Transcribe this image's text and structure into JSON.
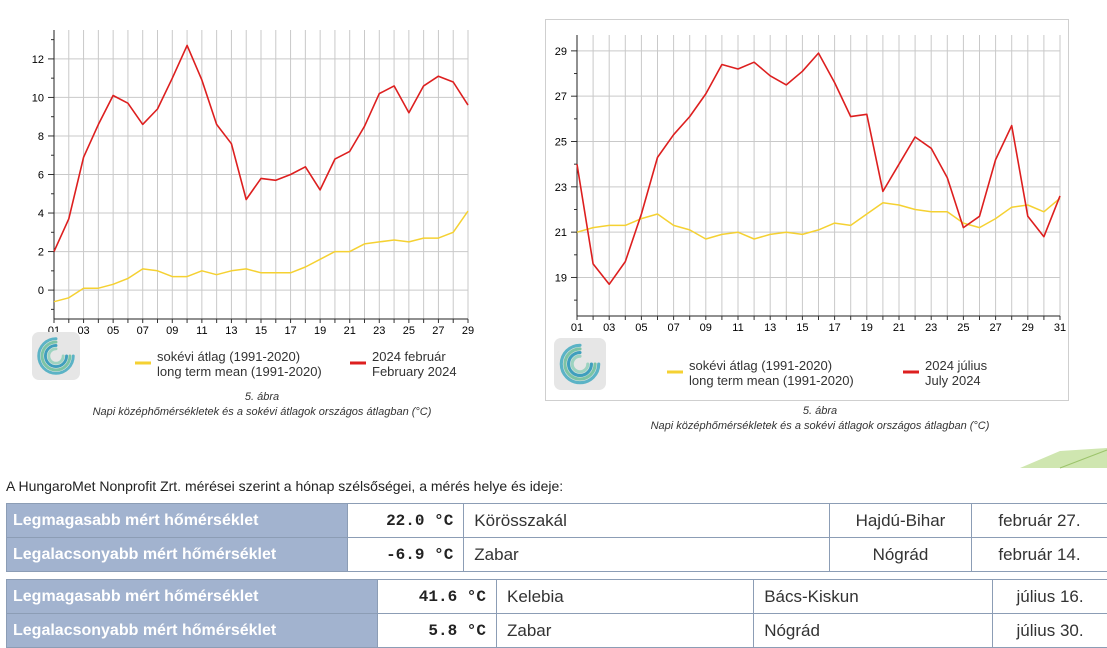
{
  "chart_data": [
    {
      "type": "line",
      "id": "feb",
      "x": [
        "01",
        "02",
        "03",
        "04",
        "05",
        "06",
        "07",
        "08",
        "09",
        "10",
        "11",
        "12",
        "13",
        "14",
        "15",
        "16",
        "17",
        "18",
        "19",
        "20",
        "21",
        "22",
        "23",
        "24",
        "25",
        "26",
        "27",
        "28",
        "29"
      ],
      "xtick_labels": [
        "01",
        "03",
        "05",
        "07",
        "09",
        "11",
        "13",
        "15",
        "17",
        "19",
        "21",
        "23",
        "25",
        "27",
        "29"
      ],
      "yticks": [
        0,
        2,
        4,
        6,
        8,
        10,
        12
      ],
      "ylim": [
        -1.5,
        13.5
      ],
      "series": [
        {
          "name": "sokévi átlag (1991-2020) / long term mean (1991-2020)",
          "color": "#f5d132",
          "values": [
            -0.6,
            -0.4,
            0.1,
            0.1,
            0.3,
            0.6,
            1.1,
            1.0,
            0.7,
            0.7,
            1.0,
            0.8,
            1.0,
            1.1,
            0.9,
            0.9,
            0.9,
            1.2,
            1.6,
            2.0,
            2.0,
            2.4,
            2.5,
            2.6,
            2.5,
            2.7,
            2.7,
            3.0,
            4.1
          ]
        },
        {
          "name": "2024 február / February 2024",
          "color": "#dd1f1f",
          "values": [
            2.0,
            3.7,
            6.9,
            8.6,
            10.1,
            9.7,
            8.6,
            9.4,
            11.0,
            12.7,
            10.9,
            8.6,
            7.6,
            4.7,
            5.8,
            5.7,
            6.0,
            6.4,
            5.2,
            6.8,
            7.2,
            8.5,
            10.2,
            10.6,
            9.2,
            10.6,
            11.1,
            10.8,
            9.6
          ]
        }
      ],
      "legend": {
        "mean_hu": "sokévi átlag (1991-2020)",
        "mean_en": "long term mean (1991-2020)",
        "cur_hu": "2024 február",
        "cur_en": "February 2024"
      }
    },
    {
      "type": "line",
      "id": "jul",
      "x": [
        "01",
        "02",
        "03",
        "04",
        "05",
        "06",
        "07",
        "08",
        "09",
        "10",
        "11",
        "12",
        "13",
        "14",
        "15",
        "16",
        "17",
        "18",
        "19",
        "20",
        "21",
        "22",
        "23",
        "24",
        "25",
        "26",
        "27",
        "28",
        "29",
        "30",
        "31"
      ],
      "xtick_labels": [
        "01",
        "03",
        "05",
        "07",
        "09",
        "11",
        "13",
        "15",
        "17",
        "19",
        "21",
        "23",
        "25",
        "27",
        "29",
        "31"
      ],
      "yticks": [
        19,
        21,
        23,
        25,
        27,
        29
      ],
      "ylim": [
        17.3,
        29.7
      ],
      "series": [
        {
          "name": "sokévi átlag (1991-2020) / long term mean (1991-2020)",
          "color": "#f5d132",
          "values": [
            21.0,
            21.2,
            21.3,
            21.3,
            21.6,
            21.8,
            21.3,
            21.1,
            20.7,
            20.9,
            21.0,
            20.7,
            20.9,
            21.0,
            20.9,
            21.1,
            21.4,
            21.3,
            21.8,
            22.3,
            22.2,
            22.0,
            21.9,
            21.9,
            21.4,
            21.2,
            21.6,
            22.1,
            22.2,
            21.9,
            22.5
          ]
        },
        {
          "name": "2024 július / July 2024",
          "color": "#dd1f1f",
          "values": [
            24.0,
            19.6,
            18.7,
            19.7,
            21.8,
            24.3,
            25.3,
            26.1,
            27.1,
            28.4,
            28.2,
            28.5,
            27.9,
            27.5,
            28.1,
            28.9,
            27.6,
            26.1,
            26.2,
            22.8,
            24.0,
            25.2,
            24.7,
            23.4,
            21.2,
            21.7,
            24.2,
            25.7,
            21.7,
            20.8,
            22.6
          ]
        }
      ],
      "legend": {
        "mean_hu": "sokévi átlag (1991-2020)",
        "mean_en": "long term mean (1991-2020)",
        "cur_hu": "2024 július",
        "cur_en": "July 2024"
      }
    }
  ],
  "captions": {
    "feb": {
      "line1": "5. ábra",
      "line2": "Napi középhőmérsékletek és a sokévi átlagok országos átlagban (°C)"
    },
    "jul": {
      "line1": "5. ábra",
      "line2": "Napi középhőmérsékletek és a sokévi átlagok országos átlagban (°C)"
    }
  },
  "intro_text": "A HungaroMet Nonprofit Zrt. mérései szerint a hónap szélsőségei, a mérés helye és ideje:",
  "extremes_feb": [
    {
      "label": "Legmagasabb mért hőmérséklet",
      "value": "22.0 °C",
      "place": "Körösszakál",
      "county": "Hajdú-Bihar",
      "date": "február 27."
    },
    {
      "label": "Legalacsonyabb mért hőmérséklet",
      "value": "-6.9 °C",
      "place": "Zabar",
      "county": "Nógrád",
      "date": "február 14."
    }
  ],
  "extremes_jul": [
    {
      "label": "Legmagasabb mért hőmérséklet",
      "value": "41.6 °C",
      "place": "Kelebia",
      "county": "Bács-Kiskun",
      "date": "július 16."
    },
    {
      "label": "Legalacsonyabb mért hőmérséklet",
      "value": "5.8 °C",
      "place": "Zabar",
      "county": "Nógrád",
      "date": "július 30."
    }
  ],
  "colors": {
    "mean": "#f5d132",
    "current": "#dd1f1f",
    "table_header": "#a2b3cf"
  }
}
